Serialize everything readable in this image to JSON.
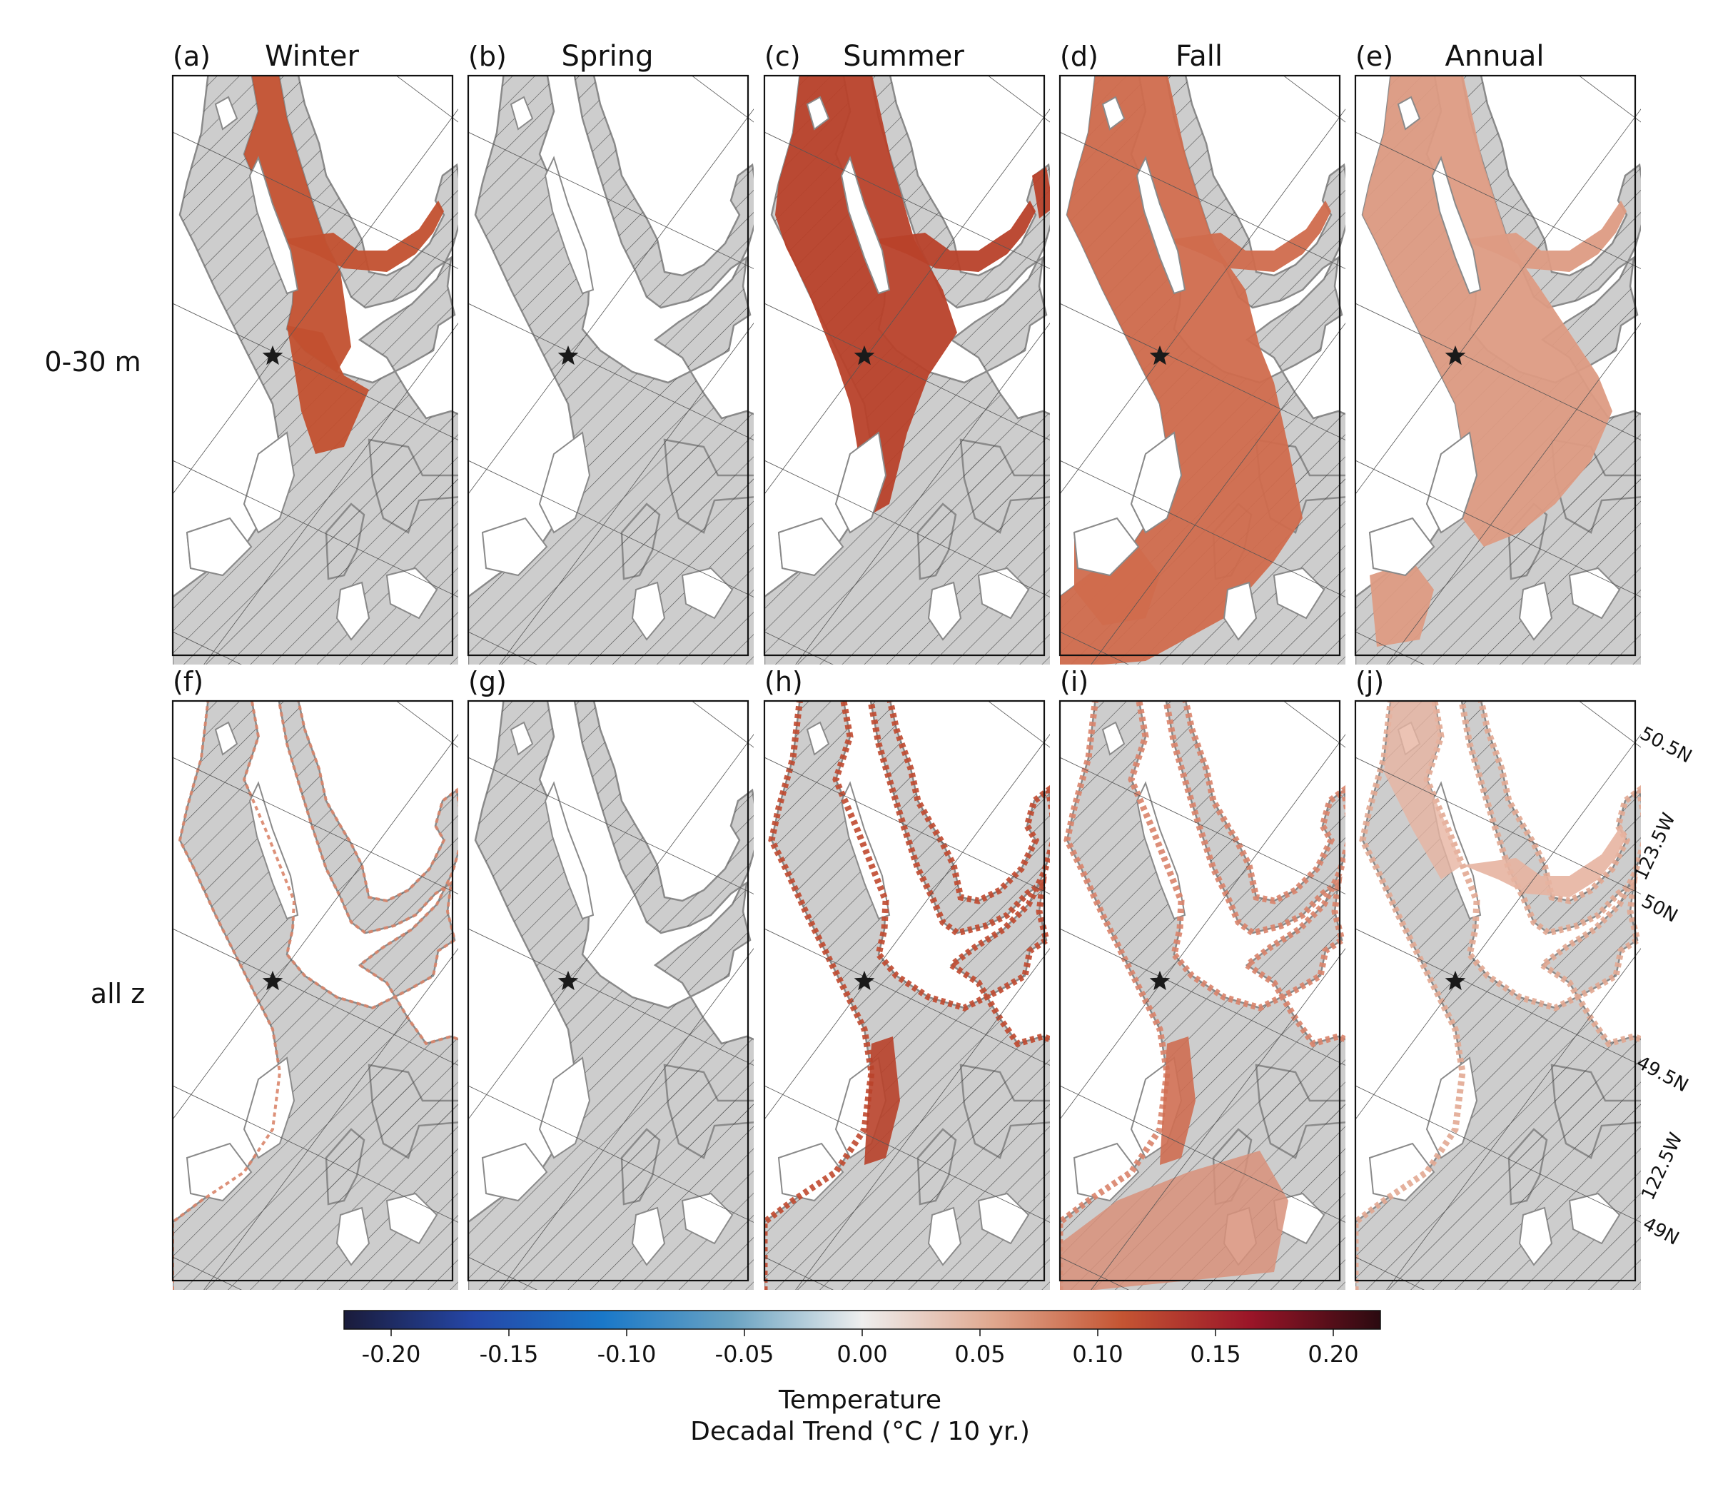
{
  "figure": {
    "panels": [
      {
        "letter": "(a)",
        "season": "Winter",
        "row": 0,
        "col": 0,
        "mode": "winter"
      },
      {
        "letter": "(b)",
        "season": "Spring",
        "row": 0,
        "col": 1,
        "mode": "none"
      },
      {
        "letter": "(c)",
        "season": "Summer",
        "row": 0,
        "col": 2,
        "mode": "summer"
      },
      {
        "letter": "(d)",
        "season": "Fall",
        "row": 0,
        "col": 3,
        "mode": "fall"
      },
      {
        "letter": "(e)",
        "season": "Annual",
        "row": 0,
        "col": 4,
        "mode": "annual"
      },
      {
        "letter": "(f)",
        "season": "",
        "row": 1,
        "col": 0,
        "mode": "edges_light"
      },
      {
        "letter": "(g)",
        "season": "",
        "row": 1,
        "col": 1,
        "mode": "none"
      },
      {
        "letter": "(h)",
        "season": "",
        "row": 1,
        "col": 2,
        "mode": "edges_summer"
      },
      {
        "letter": "(i)",
        "season": "",
        "row": 1,
        "col": 3,
        "mode": "edges_fall"
      },
      {
        "letter": "(j)",
        "season": "",
        "row": 1,
        "col": 4,
        "mode": "edges_annual"
      }
    ],
    "row_labels": [
      "0-30 m",
      "all z"
    ],
    "lat_lon_labels": [
      "50.5N",
      "123.5W",
      "50N",
      "49.5N",
      "122.5W",
      "49N"
    ],
    "marker": "star",
    "hatch_meaning": "not significant"
  },
  "colorbar": {
    "title": "Temperature",
    "subtitle": "Decadal Trend (°C / 10 yr.)",
    "min": -0.22,
    "max": 0.22,
    "ticks": [
      "-0.20",
      "-0.15",
      "-0.10",
      "-0.05",
      "0.00",
      "0.05",
      "0.10",
      "0.15",
      "0.20"
    ],
    "tick_values": [
      -0.2,
      -0.15,
      -0.1,
      -0.05,
      0.0,
      0.05,
      0.1,
      0.15,
      0.2
    ],
    "colors": [
      "#1a1b3a",
      "#2547a8",
      "#1a78c8",
      "#6aa3c2",
      "#eeeeee",
      "#e0a88f",
      "#c55533",
      "#9a1528",
      "#2b0a10"
    ]
  },
  "colors": {
    "land": "#ffffff",
    "water_ns": "#cdcdcd",
    "water_edge": "#e2e2e2",
    "coast": "#8a8a8a",
    "hatch": "#444444",
    "warming_strong": "#c2502f",
    "warming_summer": "#b8412a",
    "warming_fall": "#d06c4d",
    "warming_annual": "#dd9b83"
  }
}
